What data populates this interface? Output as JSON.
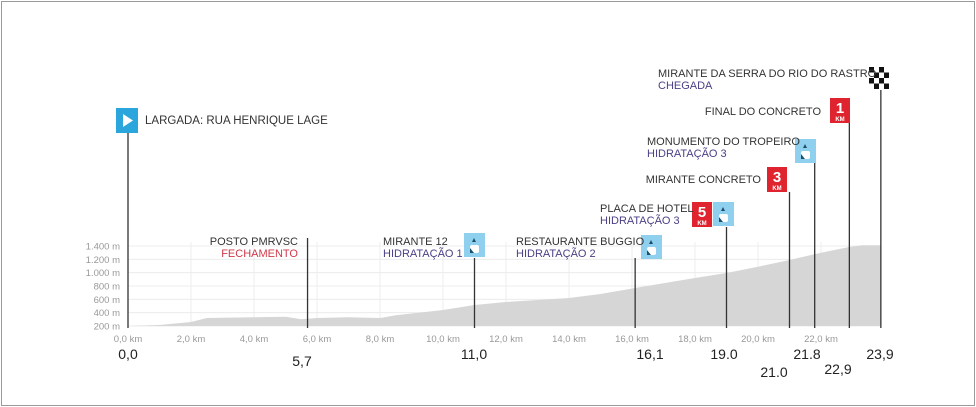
{
  "chart_data": {
    "type": "area",
    "title": "",
    "xlabel": "",
    "ylabel": "",
    "xlim": [
      0,
      23.9
    ],
    "ylim": [
      200,
      1400
    ],
    "grid": true,
    "x_ticks": [
      "0,0 km",
      "2,0 km",
      "4,0 km",
      "6,0 km",
      "8,0 km",
      "10,0 km",
      "12,0 km",
      "14,0 km",
      "16,0 km",
      "18,0 km",
      "20,0 km",
      "22,0 km"
    ],
    "y_ticks": [
      "200 m",
      "400 m",
      "600 m",
      "800 m",
      "1.000 m",
      "1.200 m",
      "1.400 m"
    ],
    "profile": {
      "km": [
        0,
        1,
        2,
        2.5,
        4,
        5,
        5.5,
        6,
        7,
        8,
        8.5,
        10,
        11,
        12,
        13,
        14,
        15,
        16.1,
        17,
        18,
        19,
        20,
        21,
        22,
        22.9,
        23.3,
        23.9
      ],
      "elev": [
        200,
        215,
        260,
        320,
        330,
        340,
        300,
        320,
        330,
        320,
        360,
        440,
        515,
        560,
        590,
        620,
        680,
        770,
        840,
        920,
        995,
        1090,
        1190,
        1300,
        1385,
        1410,
        1410
      ]
    },
    "markers": [
      {
        "km_label": "0,0",
        "name": "LARGADA: RUA HENRIQUE LAGE",
        "sub": "",
        "icon": "start-flag-icon"
      },
      {
        "km_label": "5,7",
        "name": "POSTO PMRVSC",
        "sub": "FECHAMENTO",
        "icon": ""
      },
      {
        "km_label": "11,0",
        "name": "MIRANTE 12",
        "sub": "HIDRATAÇÃO 1",
        "icon": "water-icon"
      },
      {
        "km_label": "16,1",
        "name": "RESTAURANTE BUGGIO",
        "sub": "HIDRATAÇÃO 2",
        "icon": "water-icon"
      },
      {
        "km_label": "19.0",
        "name": "PLACA DE HOTEL",
        "sub": "HIDRATAÇÃO 3",
        "icon": "water-icon",
        "badge": "5"
      },
      {
        "km_label": "21.0",
        "name": "MIRANTE CONCRETO",
        "sub": "",
        "icon": "",
        "badge": "3"
      },
      {
        "km_label": "21.8",
        "name": "MONUMENTO DO TROPEIRO",
        "sub": "HIDRATAÇÃO 3",
        "icon": "water-icon"
      },
      {
        "km_label": "22,9",
        "name": "FINAL DO CONCRETO",
        "sub": "",
        "icon": "",
        "badge": "1"
      },
      {
        "km_label": "23,9",
        "name": "MIRANTE DA SERRA DO RIO DO RASTRO",
        "sub": "CHEGADA",
        "icon": "finish-flag-icon"
      }
    ],
    "badge_unit": "KM",
    "colors": {
      "area": "#d6d6d6",
      "water": "#8fd0ee",
      "badge": "#e0242f",
      "start": "#2aa6dc"
    }
  }
}
